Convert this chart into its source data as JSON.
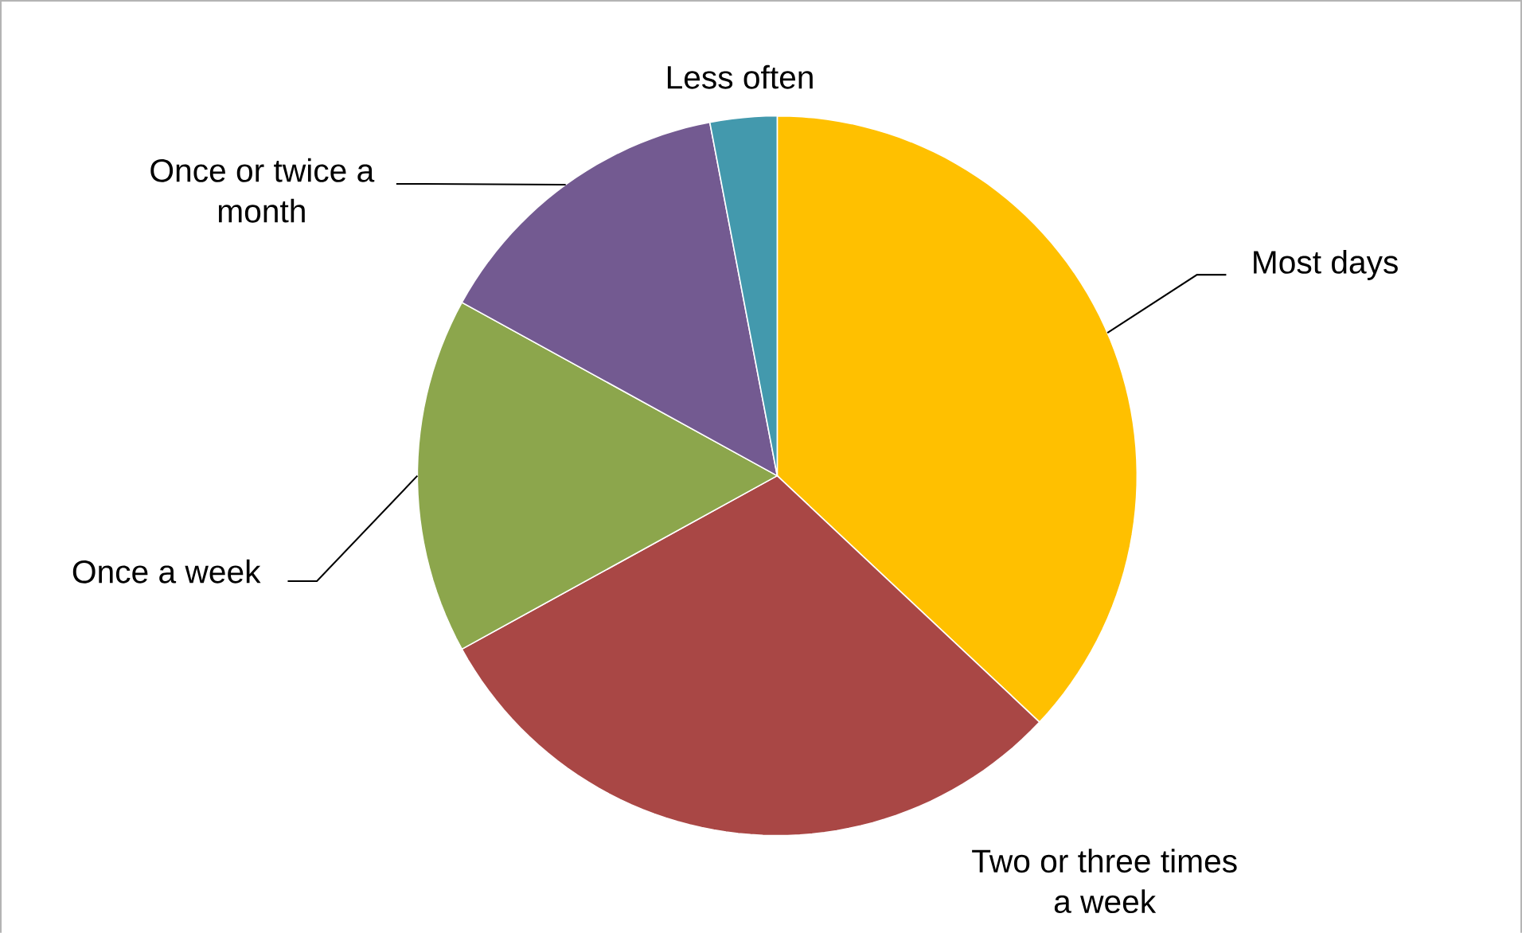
{
  "chart_data": {
    "type": "pie",
    "categories": [
      "Most days",
      "Two or three times a week",
      "Once a week",
      "Once or twice a month",
      "Less often"
    ],
    "values": [
      37,
      30,
      16,
      14,
      3
    ],
    "colors": [
      "#ffc000",
      "#a94745",
      "#8ca64c",
      "#735a91",
      "#4399ad"
    ]
  }
}
